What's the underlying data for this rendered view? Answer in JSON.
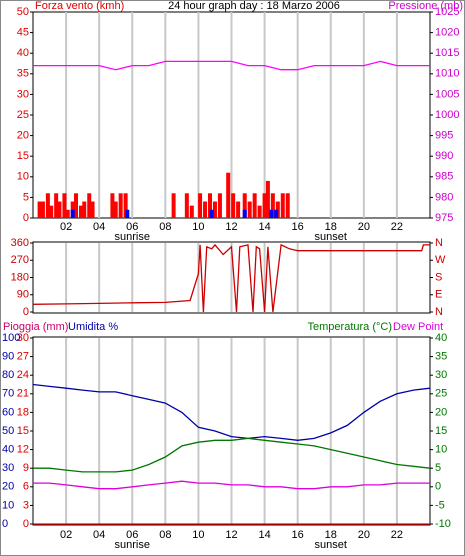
{
  "chart_data": [
    {
      "type": "bar",
      "title": "24 hour graph day : 18 Marzo 2006",
      "ylabel": "Forza vento (kmh)",
      "y2label": "Pressione (mb)",
      "xlim": [
        0,
        24
      ],
      "xticks": [
        {
          "value": 2,
          "label": "02"
        },
        {
          "value": 4,
          "label": "04"
        },
        {
          "value": 6,
          "label": "06"
        },
        {
          "value": 8,
          "label": "08"
        },
        {
          "value": 10,
          "label": "10"
        },
        {
          "value": 12,
          "label": "12"
        },
        {
          "value": 14,
          "label": "14"
        },
        {
          "value": 16,
          "label": "16"
        },
        {
          "value": 18,
          "label": "18"
        },
        {
          "value": 20,
          "label": "20"
        },
        {
          "value": 22,
          "label": "22"
        }
      ],
      "annotations": [
        {
          "text": "sunrise",
          "x": 6
        },
        {
          "text": "sunset",
          "x": 18
        }
      ],
      "ylim": [
        0,
        50
      ],
      "yticks": [
        0,
        5,
        10,
        15,
        20,
        25,
        30,
        35,
        40,
        45,
        50
      ],
      "y2lim": [
        975,
        1025
      ],
      "y2ticks": [
        975,
        980,
        985,
        990,
        995,
        1000,
        1005,
        1010,
        1015,
        1020,
        1025
      ],
      "series": [
        {
          "color": "#ff0000",
          "kind": "bar",
          "x": [
            0.4,
            0.6,
            0.9,
            1.1,
            1.4,
            1.6,
            1.9,
            2.1,
            2.4,
            2.6,
            2.9,
            3.1,
            3.4,
            3.6,
            4.8,
            5.0,
            5.3,
            5.6,
            8.5,
            9.3,
            9.6,
            10.1,
            10.4,
            10.7,
            11.0,
            11.3,
            11.8,
            12.1,
            12.4,
            12.8,
            13.1,
            13.4,
            13.7,
            14.0,
            14.2,
            14.5,
            14.8,
            15.1,
            15.4
          ],
          "values": [
            4,
            4,
            6,
            3,
            6,
            4,
            6,
            2,
            4,
            6,
            3,
            4,
            6,
            4,
            6,
            4,
            6,
            6,
            6,
            6,
            3,
            6,
            4,
            6,
            4,
            6,
            11,
            6,
            4,
            6,
            4,
            6,
            3,
            6,
            9,
            6,
            4,
            6,
            6
          ]
        },
        {
          "color": "#0000ff",
          "kind": "bar",
          "x": [
            2.4,
            5.7,
            10.8,
            12.8,
            14.4,
            14.7
          ],
          "values": [
            2,
            2,
            2,
            2,
            2,
            2
          ]
        },
        {
          "color": "#ff00ff",
          "kind": "line",
          "axis": "y2",
          "x": [
            0,
            1,
            2,
            3,
            4,
            5,
            6,
            7,
            8,
            9,
            10,
            11,
            12,
            13,
            14,
            15,
            16,
            17,
            18,
            19,
            20,
            21,
            22,
            23,
            24
          ],
          "values": [
            1012,
            1012,
            1012,
            1012,
            1012,
            1011,
            1012,
            1012,
            1013,
            1013,
            1013,
            1013,
            1013,
            1012,
            1012,
            1011,
            1011,
            1012,
            1012,
            1012,
            1012,
            1013,
            1012,
            1012,
            1012
          ]
        }
      ]
    },
    {
      "type": "line",
      "xlim": [
        0,
        24
      ],
      "ylim": [
        0,
        360
      ],
      "yticks": [
        0,
        90,
        180,
        270,
        360
      ],
      "y2lim": [
        0,
        360
      ],
      "y2ticks": [
        {
          "value": 0,
          "label": "N"
        },
        {
          "value": 90,
          "label": "E"
        },
        {
          "value": 180,
          "label": "S"
        },
        {
          "value": 270,
          "label": "W"
        },
        {
          "value": 360,
          "label": "N"
        }
      ],
      "series": [
        {
          "color": "#cc0000",
          "kind": "line",
          "x": [
            0,
            2,
            4,
            6,
            8,
            9.5,
            10,
            10.1,
            10.3,
            10.5,
            10.8,
            11,
            11.5,
            12,
            12.3,
            12.5,
            13,
            13.3,
            13.5,
            13.7,
            14,
            14.2,
            14.5,
            15,
            15.5,
            16,
            17,
            18,
            20,
            22,
            23.5,
            23.6,
            24
          ],
          "values": [
            40,
            42,
            45,
            48,
            50,
            60,
            200,
            350,
            0,
            340,
            330,
            350,
            300,
            340,
            0,
            340,
            350,
            0,
            340,
            330,
            0,
            340,
            0,
            350,
            330,
            320,
            320,
            320,
            320,
            320,
            320,
            350,
            350
          ]
        }
      ]
    },
    {
      "type": "line",
      "ylabel": "Pioggia (mm)",
      "y3label": "Umidita %",
      "y2label": "Temperatura (°C)",
      "y2label_b": "Dew Point",
      "xlim": [
        0,
        24
      ],
      "xticks": [
        {
          "value": 2,
          "label": "02"
        },
        {
          "value": 4,
          "label": "04"
        },
        {
          "value": 6,
          "label": "06"
        },
        {
          "value": 8,
          "label": "08"
        },
        {
          "value": 10,
          "label": "10"
        },
        {
          "value": 12,
          "label": "12"
        },
        {
          "value": 14,
          "label": "14"
        },
        {
          "value": 16,
          "label": "16"
        },
        {
          "value": 18,
          "label": "18"
        },
        {
          "value": 20,
          "label": "20"
        },
        {
          "value": 22,
          "label": "22"
        }
      ],
      "annotations": [
        {
          "text": "sunrise",
          "x": 6
        },
        {
          "text": "sunset",
          "x": 18
        }
      ],
      "ylim": [
        0,
        30
      ],
      "yticks": [
        0,
        3,
        6,
        9,
        12,
        15,
        18,
        21,
        24,
        27,
        30
      ],
      "y3lim": [
        0,
        100
      ],
      "y3ticks": [
        0,
        10,
        20,
        30,
        40,
        50,
        60,
        70,
        80,
        90,
        100
      ],
      "y2lim": [
        -10,
        40
      ],
      "y2ticks": [
        -10,
        -5,
        0,
        5,
        10,
        15,
        20,
        25,
        30,
        35,
        40
      ],
      "series": [
        {
          "color": "#ff0000",
          "kind": "line",
          "axis": "y",
          "x": [
            0,
            24
          ],
          "values": [
            0,
            0
          ]
        },
        {
          "color": "#0000aa",
          "kind": "line",
          "axis": "y3",
          "x": [
            0,
            1,
            2,
            3,
            4,
            5,
            6,
            7,
            8,
            9,
            10,
            11,
            12,
            13,
            14,
            15,
            16,
            17,
            18,
            19,
            20,
            21,
            22,
            23,
            24
          ],
          "values": [
            75,
            74,
            73,
            72,
            71,
            71,
            69,
            67,
            65,
            60,
            52,
            50,
            47,
            46,
            47,
            46,
            45,
            46,
            49,
            53,
            60,
            66,
            70,
            72,
            73
          ]
        },
        {
          "color": "#007700",
          "kind": "line",
          "axis": "y2",
          "x": [
            0,
            1,
            2,
            3,
            4,
            5,
            6,
            7,
            8,
            9,
            10,
            11,
            12,
            13,
            14,
            15,
            16,
            17,
            18,
            19,
            20,
            21,
            22,
            23,
            24
          ],
          "values": [
            5,
            5,
            4.5,
            4,
            4,
            4,
            4.5,
            6,
            8,
            11,
            12,
            12.5,
            12.5,
            13,
            12.5,
            12,
            11.5,
            11,
            10,
            9,
            8,
            7,
            6,
            5.5,
            5
          ]
        },
        {
          "color": "#dd00dd",
          "kind": "line",
          "axis": "y2",
          "x": [
            0,
            1,
            2,
            3,
            4,
            5,
            6,
            7,
            8,
            9,
            10,
            11,
            12,
            13,
            14,
            15,
            16,
            17,
            18,
            19,
            20,
            21,
            22,
            23,
            24
          ],
          "values": [
            1,
            1,
            0.5,
            0,
            -0.5,
            -0.5,
            0,
            0.5,
            1,
            1.5,
            1,
            1,
            0.5,
            0.5,
            0,
            0,
            -0.5,
            -0.5,
            0,
            0,
            0.5,
            0.5,
            1,
            1,
            1
          ]
        }
      ]
    }
  ]
}
